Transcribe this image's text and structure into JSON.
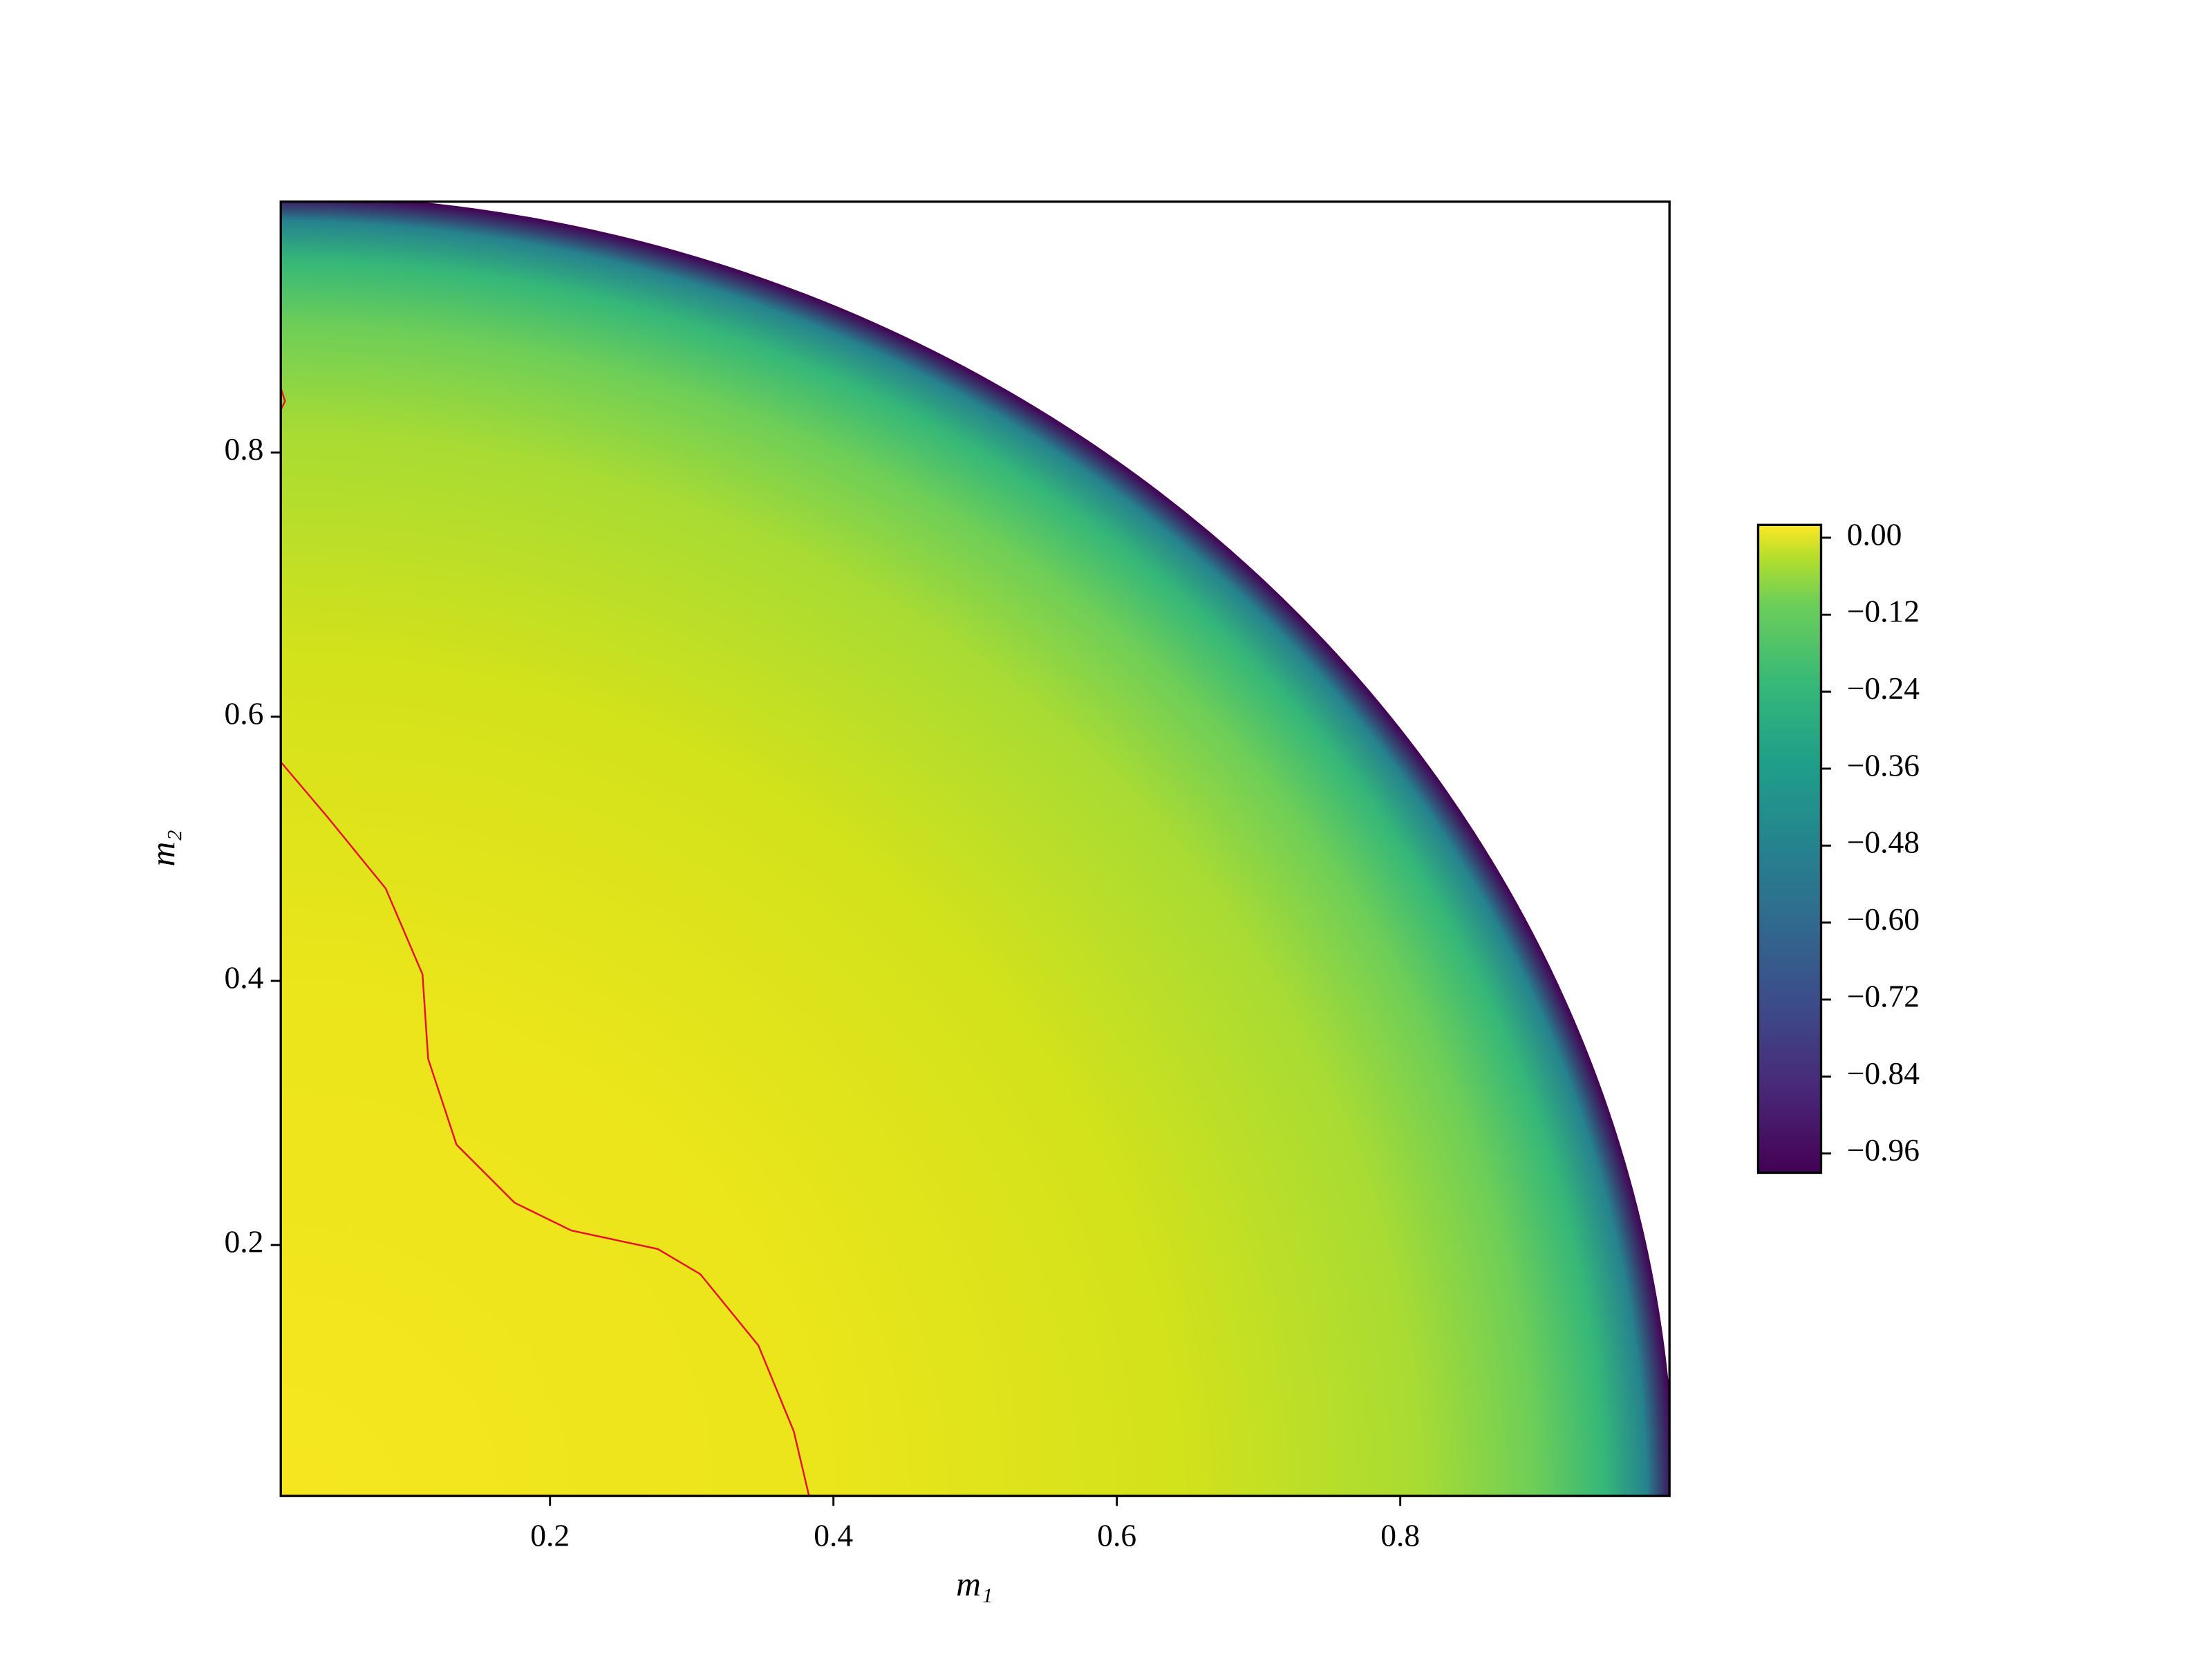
{
  "chart_data": {
    "type": "contourf",
    "xlabel": "m₁",
    "ylabel": "m₂",
    "xlim": [
      0.01,
      0.99
    ],
    "ylim": [
      0.01,
      0.99
    ],
    "xticks": [
      0.2,
      0.4,
      0.6,
      0.8
    ],
    "yticks": [
      0.2,
      0.4,
      0.6,
      0.8
    ],
    "cmap": "viridis",
    "clim": [
      -0.99,
      0.02
    ],
    "cticks": [
      {
        "value": 0,
        "label": "0.00"
      },
      {
        "value": -0.12,
        "label": "−0.12"
      },
      {
        "value": -0.24,
        "label": "−0.24"
      },
      {
        "value": -0.36,
        "label": "−0.36"
      },
      {
        "value": -0.48,
        "label": "−0.48"
      },
      {
        "value": -0.6,
        "label": "−0.60"
      },
      {
        "value": -0.72,
        "label": "−0.72"
      },
      {
        "value": -0.84,
        "label": "−0.84"
      },
      {
        "value": -0.96,
        "label": "−0.96"
      }
    ],
    "contour_color": "#e8112d",
    "contour_lines": [
      {
        "x": [
          0.009,
          0.043,
          0.084,
          0.11,
          0.114,
          0.134,
          0.175,
          0.215,
          0.276,
          0.306,
          0.347,
          0.372,
          0.383
        ],
        "y": [
          0.567,
          0.524,
          0.47,
          0.405,
          0.341,
          0.276,
          0.232,
          0.211,
          0.197,
          0.178,
          0.124,
          0.059,
          0.009
        ]
      },
      {
        "x": [
          0.009,
          0.013,
          0.009
        ],
        "y": [
          0.852,
          0.839,
          0.83
        ]
      }
    ]
  }
}
